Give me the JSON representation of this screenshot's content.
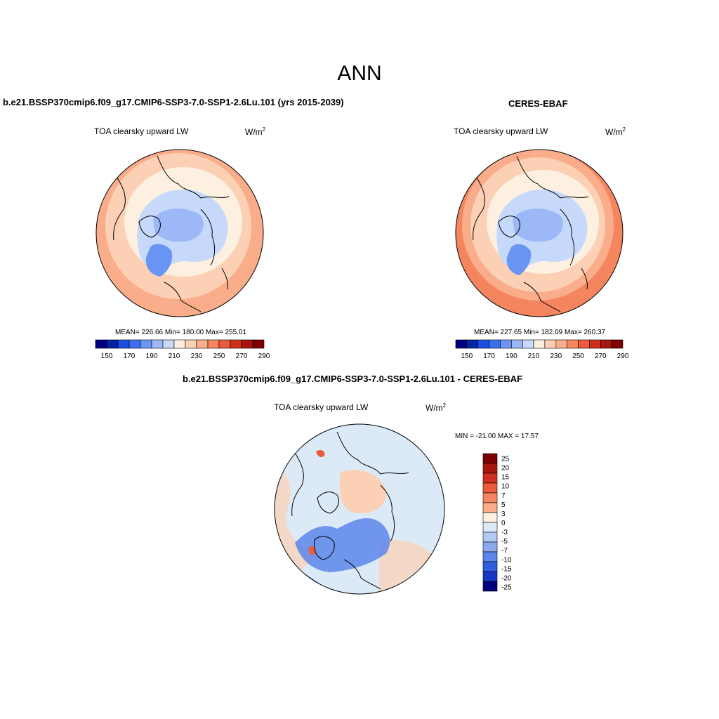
{
  "page": {
    "title": "ANN"
  },
  "panels": {
    "model": {
      "title": "b.e21.BSSP370cmip6.f09_g17.CMIP6-SSP3-7.0-SSP1-2.6Lu.101 (yrs 2015-2039)",
      "variable": "TOA clearsky upward LW",
      "units_base": "W/m",
      "units_exp": "2",
      "stats": "MEAN= 226.66  Min= 180.00  Max= 255.01"
    },
    "obs": {
      "title": "CERES-EBAF",
      "variable": "TOA clearsky upward LW",
      "units_base": "W/m",
      "units_exp": "2",
      "stats": "MEAN= 227.65  Min= 182.09  Max= 260.37"
    },
    "diff": {
      "title": "b.e21.BSSP370cmip6.f09_g17.CMIP6-SSP3-7.0-SSP1-2.6Lu.101 - CERES-EBAF",
      "variable": "TOA clearsky upward LW",
      "units_base": "W/m",
      "units_exp": "2",
      "stats": "MIN = -21.00 MAX =  17.57"
    }
  },
  "colorbars": {
    "main": {
      "colors": [
        "#00007f",
        "#0026a6",
        "#1a4fe0",
        "#3b6ff0",
        "#6a95f5",
        "#9cb8f6",
        "#c6d9fb",
        "#fdf0e0",
        "#fcd0b4",
        "#f9ad8a",
        "#f5855f",
        "#ec5a3a",
        "#cf2f1f",
        "#a51610",
        "#7f0000"
      ],
      "labels": [
        "150",
        "170",
        "190",
        "210",
        "230",
        "250",
        "270",
        "290"
      ]
    },
    "diff": {
      "colors": [
        "#7f0000",
        "#a51610",
        "#cf2f1f",
        "#ec5a3a",
        "#f5855f",
        "#f9ad8a",
        "#fdf0e0",
        "#dceaf8",
        "#b3cbf4",
        "#8aaaf0",
        "#5c86ea",
        "#2f5fe0",
        "#1538c4",
        "#00007f"
      ],
      "labels": [
        "25",
        "20",
        "15",
        "10",
        "7",
        "5",
        "3",
        "0",
        "-3",
        "-5",
        "-7",
        "-10",
        "-15",
        "-20",
        "-25"
      ]
    }
  },
  "map_colors": {
    "land_outline": "#000000",
    "ring_outer": "#f9ad8a",
    "ring_mid": "#fcd0b4",
    "ring_inner": "#fdf0e0",
    "arctic": "#c6d9fb",
    "greenland": "#6a95f5",
    "diff_base": "#dceaf8",
    "diff_warm": "#fcd0b4",
    "diff_cool": "#5c86ea"
  }
}
